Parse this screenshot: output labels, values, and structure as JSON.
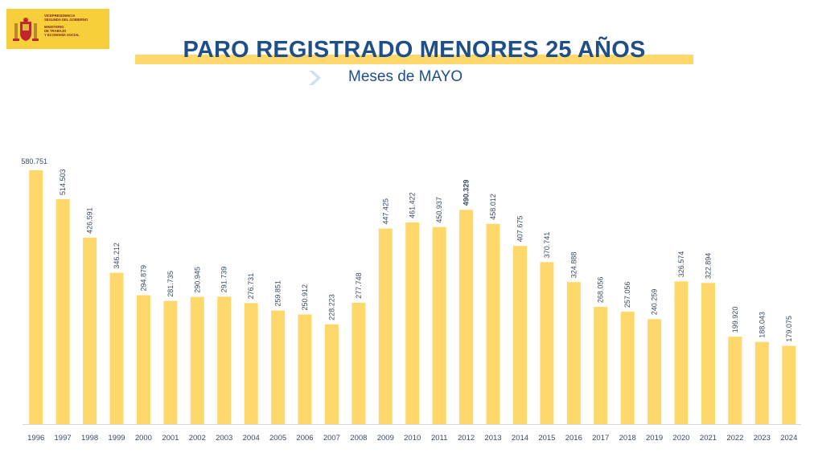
{
  "logo": {
    "lines": [
      "VICEPRESIDENCIA",
      "SEGUNDA DEL GOBIERNO",
      "MINISTERIO",
      "DE TRABAJO",
      "Y ECONOMÍA SOCIAL"
    ]
  },
  "colors": {
    "bar": "#ffd86b",
    "title": "#1f4f86",
    "label": "#3a4a63",
    "logo_bg": "#f7cf3a"
  },
  "chart_data": {
    "type": "bar",
    "title": "PARO REGISTRADO MENORES 25 AÑOS",
    "subtitle": "Meses de MAYO",
    "categories": [
      "1996",
      "1997",
      "1998",
      "1999",
      "2000",
      "2001",
      "2002",
      "2003",
      "2004",
      "2005",
      "2006",
      "2007",
      "2008",
      "2009",
      "2010",
      "2011",
      "2012",
      "2013",
      "2014",
      "2015",
      "2016",
      "2017",
      "2018",
      "2019",
      "2020",
      "2021",
      "2022",
      "2023",
      "2024"
    ],
    "values": [
      580751,
      514503,
      426591,
      346212,
      294879,
      281735,
      290945,
      291739,
      276731,
      259851,
      250912,
      228223,
      277748,
      447425,
      461422,
      450937,
      490329,
      458012,
      407675,
      370741,
      324888,
      268056,
      257056,
      240259,
      326574,
      322894,
      199920,
      188043,
      179075
    ],
    "labels": [
      "580.751",
      "514.503",
      "426.591",
      "346.212",
      "294.879",
      "281.735",
      "290.945",
      "291.739",
      "276.731",
      "259.851",
      "250.912",
      "228.223",
      "277.748",
      "447.425",
      "461.422",
      "450.937",
      "490.329",
      "458.012",
      "407.675",
      "370.741",
      "324.888",
      "268.056",
      "257.056",
      "240.259",
      "326.574",
      "322.894",
      "199.920",
      "188.043",
      "179.075"
    ],
    "highlight_index": 16,
    "ylim": [
      0,
      580751
    ],
    "grid": false,
    "legend": "none"
  }
}
